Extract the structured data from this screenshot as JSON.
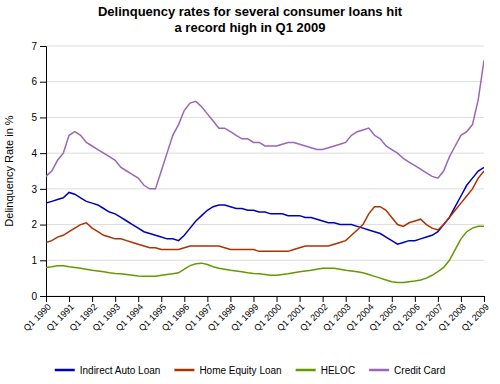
{
  "chart_data": {
    "type": "line",
    "title": "Delinquency rates for several consumer loans hit\na record high in Q1 2009",
    "y_label": "Delinquency Rate in %",
    "categories": [
      "Q1 1990",
      null,
      null,
      null,
      "Q1 1991",
      null,
      null,
      null,
      "Q1 1992",
      null,
      null,
      null,
      "Q1 1993",
      null,
      null,
      null,
      "Q1 1994",
      null,
      null,
      null,
      "Q1 1995",
      null,
      null,
      null,
      "Q1 1996",
      null,
      null,
      null,
      "Q1 1997",
      null,
      null,
      null,
      "Q1 1998",
      null,
      null,
      null,
      "Q1 1999",
      null,
      null,
      null,
      "Q1 2000",
      null,
      null,
      null,
      "Q1 2001",
      null,
      null,
      null,
      "Q1 2002",
      null,
      null,
      null,
      "Q1 2003",
      null,
      null,
      null,
      "Q1 2004",
      null,
      null,
      null,
      "Q1 2005",
      null,
      null,
      null,
      "Q1 2006",
      null,
      null,
      null,
      "Q1 2007",
      null,
      null,
      null,
      "Q1 2008",
      null,
      null,
      null,
      "Q1 2009"
    ],
    "series": [
      {
        "name": "Indirect Auto Loan",
        "color": "#0000bb",
        "values": [
          2.6,
          2.65,
          2.7,
          2.75,
          2.9,
          2.85,
          2.75,
          2.65,
          2.6,
          2.55,
          2.45,
          2.35,
          2.3,
          2.2,
          2.1,
          2.0,
          1.9,
          1.8,
          1.75,
          1.7,
          1.65,
          1.6,
          1.6,
          1.55,
          1.7,
          1.9,
          2.1,
          2.25,
          2.4,
          2.5,
          2.55,
          2.55,
          2.5,
          2.45,
          2.45,
          2.4,
          2.4,
          2.35,
          2.35,
          2.3,
          2.3,
          2.3,
          2.25,
          2.25,
          2.25,
          2.2,
          2.2,
          2.15,
          2.1,
          2.05,
          2.05,
          2.0,
          2.0,
          2.0,
          1.95,
          1.9,
          1.85,
          1.8,
          1.75,
          1.65,
          1.55,
          1.45,
          1.5,
          1.55,
          1.55,
          1.6,
          1.65,
          1.7,
          1.8,
          2.0,
          2.2,
          2.5,
          2.8,
          3.1,
          3.3,
          3.5,
          3.6
        ]
      },
      {
        "name": "Home Equity Loan",
        "color": "#aa3300",
        "values": [
          1.5,
          1.55,
          1.65,
          1.7,
          1.8,
          1.9,
          2.0,
          2.05,
          1.9,
          1.8,
          1.7,
          1.65,
          1.6,
          1.6,
          1.55,
          1.5,
          1.45,
          1.4,
          1.35,
          1.35,
          1.3,
          1.3,
          1.3,
          1.3,
          1.35,
          1.4,
          1.4,
          1.4,
          1.4,
          1.4,
          1.4,
          1.35,
          1.3,
          1.3,
          1.3,
          1.3,
          1.3,
          1.25,
          1.25,
          1.25,
          1.25,
          1.25,
          1.25,
          1.3,
          1.35,
          1.4,
          1.4,
          1.4,
          1.4,
          1.4,
          1.45,
          1.5,
          1.55,
          1.7,
          1.85,
          2.0,
          2.3,
          2.5,
          2.5,
          2.4,
          2.2,
          2.0,
          1.95,
          2.05,
          2.1,
          2.15,
          2.0,
          1.9,
          1.85,
          2.0,
          2.2,
          2.4,
          2.6,
          2.8,
          3.0,
          3.3,
          3.5
        ]
      },
      {
        "name": "HELOC",
        "color": "#669900",
        "values": [
          0.8,
          0.82,
          0.85,
          0.85,
          0.82,
          0.8,
          0.78,
          0.75,
          0.72,
          0.7,
          0.68,
          0.65,
          0.63,
          0.62,
          0.6,
          0.58,
          0.56,
          0.55,
          0.55,
          0.55,
          0.58,
          0.6,
          0.62,
          0.65,
          0.75,
          0.85,
          0.9,
          0.92,
          0.88,
          0.82,
          0.78,
          0.75,
          0.72,
          0.7,
          0.68,
          0.65,
          0.63,
          0.62,
          0.6,
          0.58,
          0.58,
          0.6,
          0.62,
          0.65,
          0.68,
          0.7,
          0.72,
          0.75,
          0.78,
          0.78,
          0.78,
          0.75,
          0.72,
          0.7,
          0.68,
          0.65,
          0.6,
          0.55,
          0.5,
          0.45,
          0.4,
          0.38,
          0.38,
          0.4,
          0.42,
          0.45,
          0.5,
          0.58,
          0.68,
          0.8,
          1.0,
          1.3,
          1.6,
          1.8,
          1.9,
          1.95,
          1.95
        ]
      },
      {
        "name": "Credit Card",
        "color": "#9966bb",
        "values": [
          3.35,
          3.5,
          3.8,
          4.0,
          4.5,
          4.6,
          4.5,
          4.3,
          4.2,
          4.1,
          4.0,
          3.9,
          3.8,
          3.6,
          3.5,
          3.4,
          3.3,
          3.1,
          3.0,
          3.0,
          3.5,
          4.0,
          4.5,
          4.8,
          5.2,
          5.4,
          5.45,
          5.3,
          5.1,
          4.9,
          4.7,
          4.7,
          4.6,
          4.5,
          4.4,
          4.4,
          4.3,
          4.3,
          4.2,
          4.2,
          4.2,
          4.25,
          4.3,
          4.3,
          4.25,
          4.2,
          4.15,
          4.1,
          4.1,
          4.15,
          4.2,
          4.25,
          4.3,
          4.5,
          4.6,
          4.65,
          4.7,
          4.5,
          4.4,
          4.2,
          4.1,
          4.0,
          3.85,
          3.75,
          3.65,
          3.55,
          3.45,
          3.35,
          3.3,
          3.5,
          3.9,
          4.2,
          4.5,
          4.6,
          4.8,
          5.5,
          6.6
        ]
      }
    ],
    "ylim": [
      0,
      7
    ],
    "yticks": [
      0,
      1,
      2,
      3,
      4,
      5,
      6,
      7
    ],
    "grid": true,
    "legend": "bottom"
  }
}
